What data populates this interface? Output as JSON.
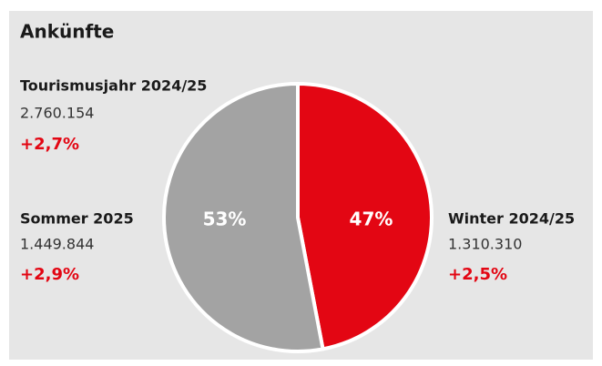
{
  "chart_data": {
    "type": "pie",
    "title": "Ankünfte",
    "total": {
      "label": "Tourismusjahr 2024/25",
      "count": "2.760.154",
      "change": "+2,7%"
    },
    "categories": [
      "Winter 2024/25",
      "Sommer 2025"
    ],
    "values": [
      47,
      53
    ],
    "value_labels": [
      "47%",
      "53%"
    ],
    "counts": [
      "1.310.310",
      "1.449.844"
    ],
    "changes": [
      "+2,5%",
      "+2,9%"
    ],
    "colors": [
      "#e30613",
      "#a3a3a3"
    ]
  }
}
